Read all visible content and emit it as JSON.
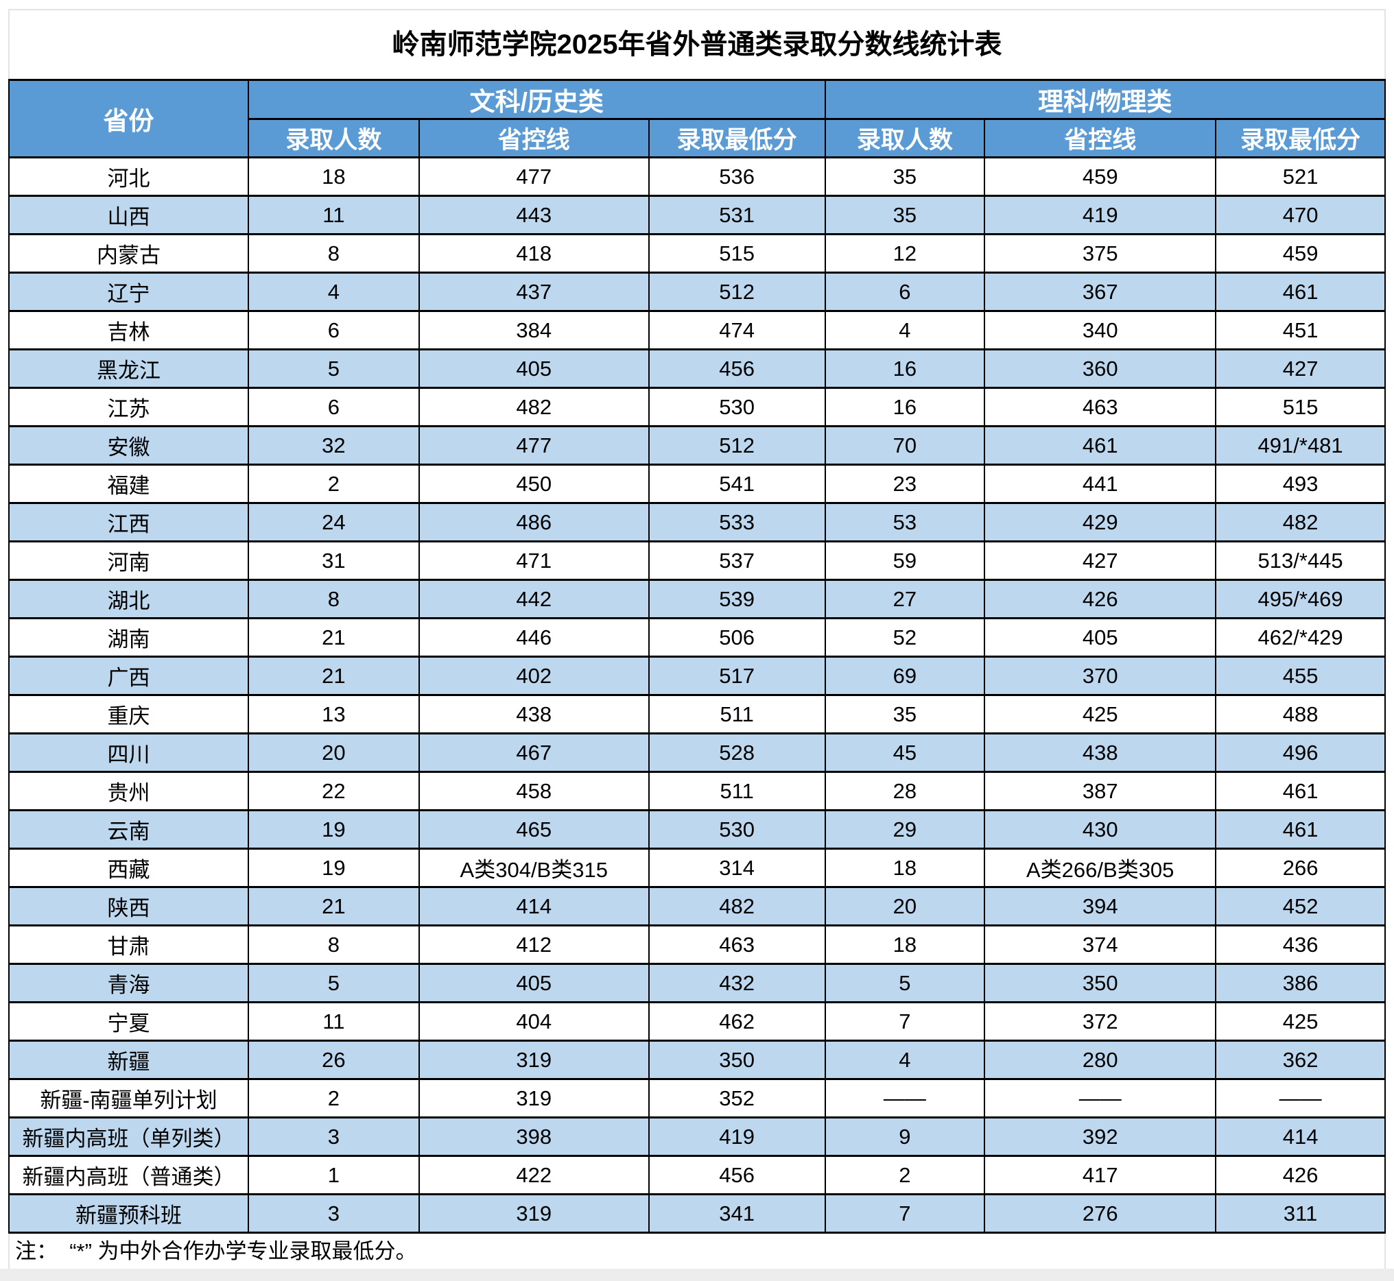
{
  "title": "岭南师范学院2025年省外普通类录取分数线统计表",
  "note": "注：  “*” 为中外合作办学专业录取最低分。",
  "colors": {
    "header_bg": "#5B9BD5",
    "band_bg": "#BDD7EE",
    "border": "#000000",
    "grid_gray": "#e3e3e3",
    "bottom_strip": "#ededed"
  },
  "chart_data": {
    "type": "table",
    "title": "岭南师范学院2025年省外普通类录取分数线统计表",
    "header": {
      "province": "省份",
      "groups": [
        {
          "label": "文科/历史类",
          "subcolumns": [
            "录取人数",
            "省控线",
            "录取最低分"
          ]
        },
        {
          "label": "理科/物理类",
          "subcolumns": [
            "录取人数",
            "省控线",
            "录取最低分"
          ]
        }
      ]
    },
    "rows": [
      {
        "province": "河北",
        "values": [
          "18",
          "477",
          "536",
          "35",
          "459",
          "521"
        ]
      },
      {
        "province": "山西",
        "values": [
          "11",
          "443",
          "531",
          "35",
          "419",
          "470"
        ]
      },
      {
        "province": "内蒙古",
        "values": [
          "8",
          "418",
          "515",
          "12",
          "375",
          "459"
        ]
      },
      {
        "province": "辽宁",
        "values": [
          "4",
          "437",
          "512",
          "6",
          "367",
          "461"
        ]
      },
      {
        "province": "吉林",
        "values": [
          "6",
          "384",
          "474",
          "4",
          "340",
          "451"
        ]
      },
      {
        "province": "黑龙江",
        "values": [
          "5",
          "405",
          "456",
          "16",
          "360",
          "427"
        ]
      },
      {
        "province": "江苏",
        "values": [
          "6",
          "482",
          "530",
          "16",
          "463",
          "515"
        ]
      },
      {
        "province": "安徽",
        "values": [
          "32",
          "477",
          "512",
          "70",
          "461",
          "491/*481"
        ]
      },
      {
        "province": "福建",
        "values": [
          "2",
          "450",
          "541",
          "23",
          "441",
          "493"
        ]
      },
      {
        "province": "江西",
        "values": [
          "24",
          "486",
          "533",
          "53",
          "429",
          "482"
        ]
      },
      {
        "province": "河南",
        "values": [
          "31",
          "471",
          "537",
          "59",
          "427",
          "513/*445"
        ]
      },
      {
        "province": "湖北",
        "values": [
          "8",
          "442",
          "539",
          "27",
          "426",
          "495/*469"
        ]
      },
      {
        "province": "湖南",
        "values": [
          "21",
          "446",
          "506",
          "52",
          "405",
          "462/*429"
        ]
      },
      {
        "province": "广西",
        "values": [
          "21",
          "402",
          "517",
          "69",
          "370",
          "455"
        ]
      },
      {
        "province": "重庆",
        "values": [
          "13",
          "438",
          "511",
          "35",
          "425",
          "488"
        ]
      },
      {
        "province": "四川",
        "values": [
          "20",
          "467",
          "528",
          "45",
          "438",
          "496"
        ]
      },
      {
        "province": "贵州",
        "values": [
          "22",
          "458",
          "511",
          "28",
          "387",
          "461"
        ]
      },
      {
        "province": "云南",
        "values": [
          "19",
          "465",
          "530",
          "29",
          "430",
          "461"
        ]
      },
      {
        "province": "西藏",
        "values": [
          "19",
          "A类304/B类315",
          "314",
          "18",
          "A类266/B类305",
          "266"
        ]
      },
      {
        "province": "陕西",
        "values": [
          "21",
          "414",
          "482",
          "20",
          "394",
          "452"
        ]
      },
      {
        "province": "甘肃",
        "values": [
          "8",
          "412",
          "463",
          "18",
          "374",
          "436"
        ]
      },
      {
        "province": "青海",
        "values": [
          "5",
          "405",
          "432",
          "5",
          "350",
          "386"
        ]
      },
      {
        "province": "宁夏",
        "values": [
          "11",
          "404",
          "462",
          "7",
          "372",
          "425"
        ]
      },
      {
        "province": "新疆",
        "values": [
          "26",
          "319",
          "350",
          "4",
          "280",
          "362"
        ]
      },
      {
        "province": "新疆-南疆单列计划",
        "values": [
          "2",
          "319",
          "352",
          "——",
          "——",
          "——"
        ]
      },
      {
        "province": "新疆内高班（单列类）",
        "values": [
          "3",
          "398",
          "419",
          "9",
          "392",
          "414"
        ]
      },
      {
        "province": "新疆内高班（普通类）",
        "values": [
          "1",
          "422",
          "456",
          "2",
          "417",
          "426"
        ]
      },
      {
        "province": "新疆预科班",
        "values": [
          "3",
          "319",
          "341",
          "7",
          "276",
          "311"
        ]
      }
    ]
  }
}
